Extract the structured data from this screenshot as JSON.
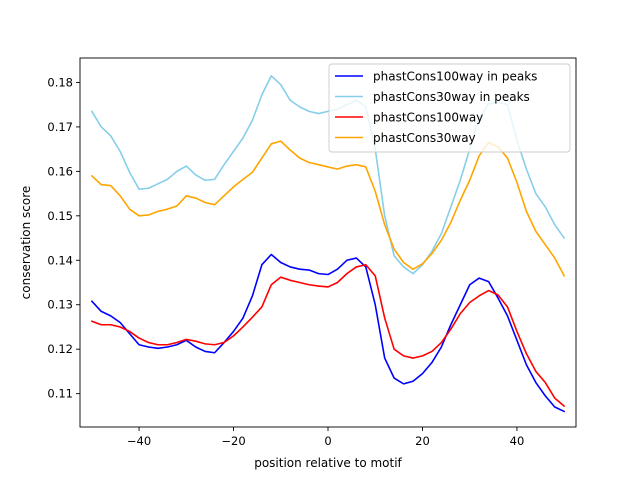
{
  "chart_data": {
    "type": "line",
    "title": "",
    "xlabel": "position relative to motif",
    "ylabel": "conservation score",
    "xlim": [
      -52.5,
      52.5
    ],
    "ylim": [
      0.1025,
      0.1855
    ],
    "xticks": [
      -40,
      -20,
      0,
      20,
      40
    ],
    "yticks": [
      0.11,
      0.12,
      0.13,
      0.14,
      0.15,
      0.16,
      0.17,
      0.18
    ],
    "ytick_labels": [
      "0.11",
      "0.12",
      "0.13",
      "0.14",
      "0.15",
      "0.16",
      "0.17",
      "0.18"
    ],
    "legend_position": "top-right",
    "series": [
      {
        "name": "phastCons100way in peaks",
        "color": "#0000ff",
        "x": [
          -50,
          -48,
          -46,
          -44,
          -42,
          -40,
          -38,
          -36,
          -34,
          -32,
          -30,
          -28,
          -26,
          -24,
          -22,
          -20,
          -18,
          -16,
          -14,
          -12,
          -10,
          -8,
          -6,
          -4,
          -2,
          0,
          2,
          4,
          6,
          8,
          10,
          12,
          14,
          16,
          18,
          20,
          22,
          24,
          26,
          28,
          30,
          32,
          34,
          36,
          38,
          40,
          42,
          44,
          46,
          48,
          50
        ],
        "y": [
          0.1308,
          0.1285,
          0.1275,
          0.126,
          0.1235,
          0.121,
          0.1205,
          0.1202,
          0.1205,
          0.121,
          0.122,
          0.1205,
          0.1195,
          0.1192,
          0.1215,
          0.124,
          0.127,
          0.132,
          0.139,
          0.1413,
          0.1395,
          0.1385,
          0.138,
          0.1378,
          0.137,
          0.1368,
          0.138,
          0.14,
          0.1405,
          0.1385,
          0.13,
          0.118,
          0.1135,
          0.1122,
          0.1128,
          0.1145,
          0.117,
          0.1205,
          0.1255,
          0.13,
          0.1345,
          0.136,
          0.1352,
          0.1315,
          0.1275,
          0.122,
          0.1165,
          0.1125,
          0.1095,
          0.107,
          0.106
        ]
      },
      {
        "name": "phastCons30way in peaks",
        "color": "#87ceeb",
        "x": [
          -50,
          -48,
          -46,
          -44,
          -42,
          -40,
          -38,
          -36,
          -34,
          -32,
          -30,
          -28,
          -26,
          -24,
          -22,
          -20,
          -18,
          -16,
          -14,
          -12,
          -10,
          -8,
          -6,
          -4,
          -2,
          0,
          2,
          4,
          6,
          8,
          10,
          12,
          14,
          16,
          18,
          20,
          22,
          24,
          26,
          28,
          30,
          32,
          34,
          36,
          38,
          40,
          42,
          44,
          46,
          48,
          50
        ],
        "y": [
          0.1735,
          0.17,
          0.168,
          0.1645,
          0.1598,
          0.156,
          0.1562,
          0.1572,
          0.1582,
          0.16,
          0.1612,
          0.1592,
          0.158,
          0.1582,
          0.1615,
          0.1645,
          0.1675,
          0.1715,
          0.1772,
          0.1815,
          0.1795,
          0.176,
          0.1745,
          0.1735,
          0.173,
          0.1735,
          0.174,
          0.175,
          0.176,
          0.1745,
          0.165,
          0.15,
          0.141,
          0.1385,
          0.137,
          0.139,
          0.142,
          0.146,
          0.152,
          0.158,
          0.165,
          0.172,
          0.1752,
          0.1755,
          0.175,
          0.167,
          0.1605,
          0.155,
          0.152,
          0.148,
          0.145
        ]
      },
      {
        "name": "phastCons100way",
        "color": "#ff0000",
        "x": [
          -50,
          -48,
          -46,
          -44,
          -42,
          -40,
          -38,
          -36,
          -34,
          -32,
          -30,
          -28,
          -26,
          -24,
          -22,
          -20,
          -18,
          -16,
          -14,
          -12,
          -10,
          -8,
          -6,
          -4,
          -2,
          0,
          2,
          4,
          6,
          8,
          10,
          12,
          14,
          16,
          18,
          20,
          22,
          24,
          26,
          28,
          30,
          32,
          34,
          36,
          38,
          40,
          42,
          44,
          46,
          48,
          50
        ],
        "y": [
          0.1263,
          0.1255,
          0.1255,
          0.125,
          0.124,
          0.1225,
          0.1215,
          0.121,
          0.121,
          0.1215,
          0.1222,
          0.1218,
          0.1212,
          0.121,
          0.1215,
          0.123,
          0.125,
          0.1272,
          0.1295,
          0.1345,
          0.1362,
          0.1355,
          0.135,
          0.1345,
          0.1342,
          0.134,
          0.135,
          0.137,
          0.1385,
          0.139,
          0.1365,
          0.127,
          0.12,
          0.1185,
          0.118,
          0.1185,
          0.1195,
          0.1215,
          0.1245,
          0.128,
          0.1305,
          0.132,
          0.1332,
          0.1322,
          0.1295,
          0.124,
          0.119,
          0.115,
          0.1125,
          0.109,
          0.1072
        ]
      },
      {
        "name": "phastCons30way",
        "color": "#ffa500",
        "x": [
          -50,
          -48,
          -46,
          -44,
          -42,
          -40,
          -38,
          -36,
          -34,
          -32,
          -30,
          -28,
          -26,
          -24,
          -22,
          -20,
          -18,
          -16,
          -14,
          -12,
          -10,
          -8,
          -6,
          -4,
          -2,
          0,
          2,
          4,
          6,
          8,
          10,
          12,
          14,
          16,
          18,
          20,
          22,
          24,
          26,
          28,
          30,
          32,
          34,
          36,
          38,
          40,
          42,
          44,
          46,
          48,
          50
        ],
        "y": [
          0.159,
          0.157,
          0.1568,
          0.1545,
          0.1515,
          0.15,
          0.1502,
          0.151,
          0.1515,
          0.1522,
          0.1545,
          0.154,
          0.153,
          0.1525,
          0.1545,
          0.1565,
          0.1582,
          0.1598,
          0.163,
          0.1662,
          0.1668,
          0.1648,
          0.163,
          0.162,
          0.1615,
          0.161,
          0.1605,
          0.1612,
          0.1615,
          0.161,
          0.1555,
          0.148,
          0.1425,
          0.1395,
          0.138,
          0.1392,
          0.1415,
          0.1445,
          0.1485,
          0.1535,
          0.158,
          0.1635,
          0.1665,
          0.1655,
          0.163,
          0.1575,
          0.151,
          0.1465,
          0.1435,
          0.1405,
          0.1365
        ]
      }
    ]
  }
}
